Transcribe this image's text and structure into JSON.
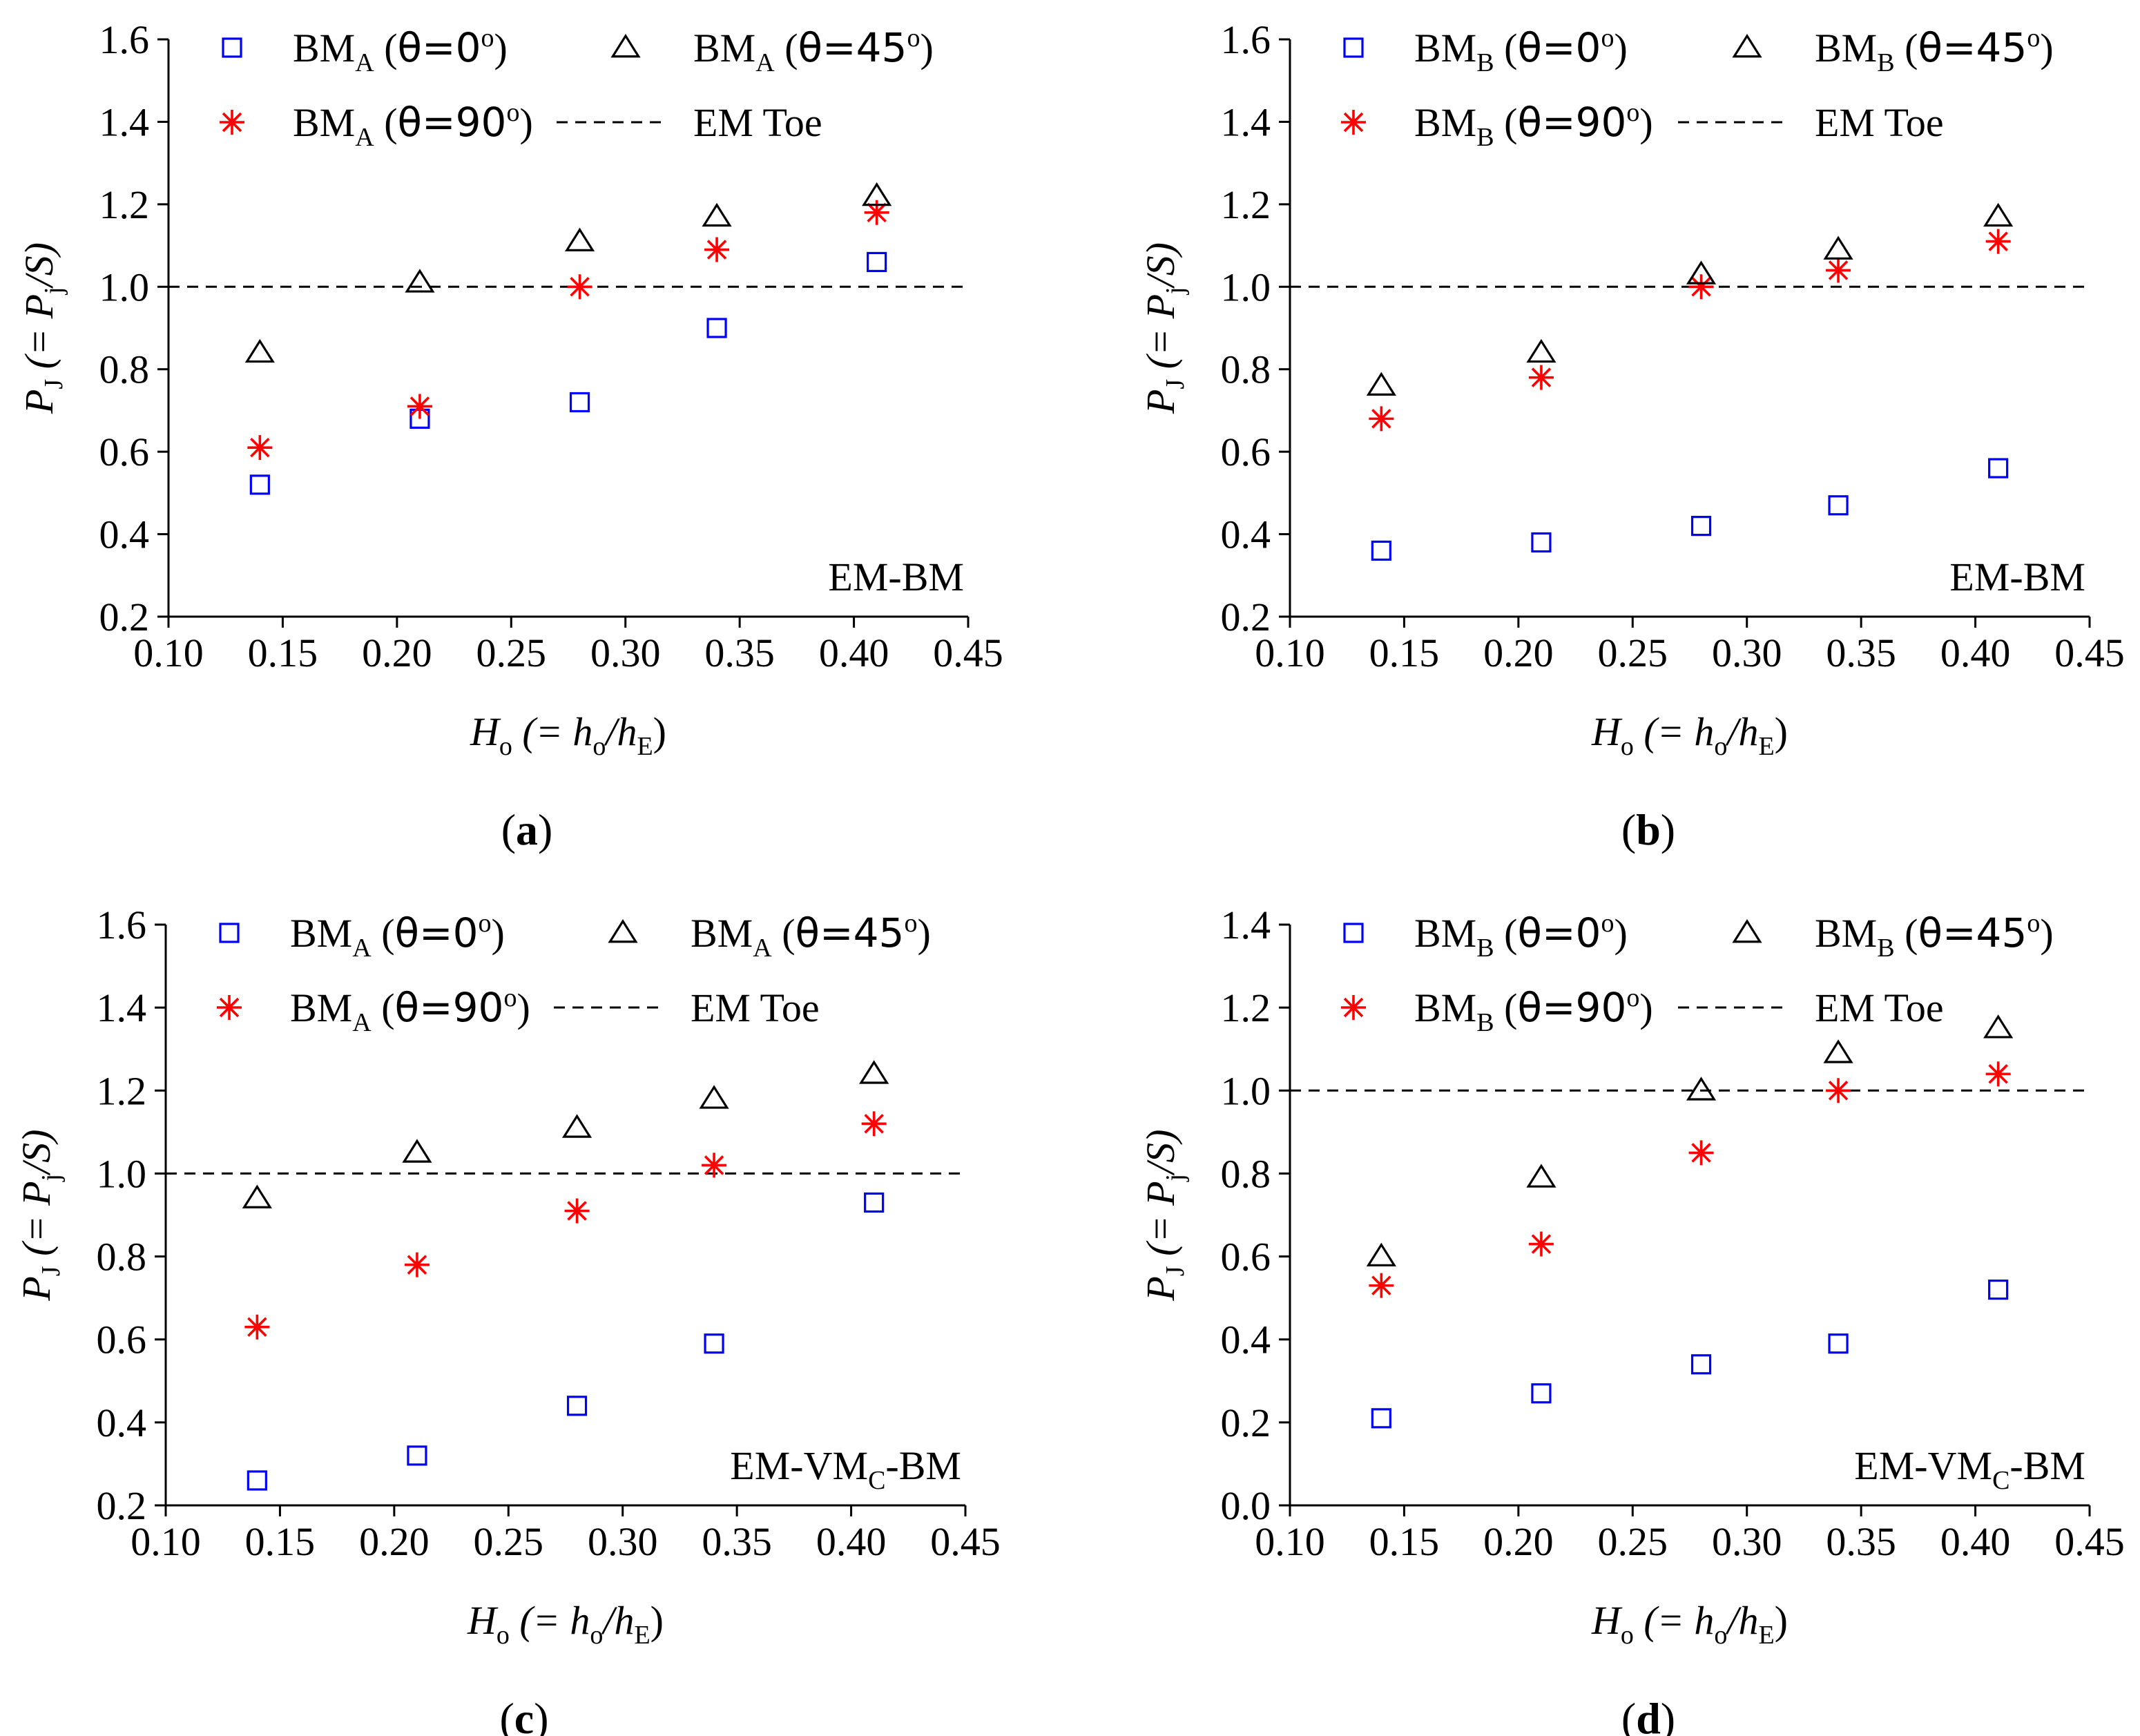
{
  "figure": {
    "sym_theta": "θ",
    "sym_deg": "o"
  },
  "chart_data": [
    {
      "type": "scatter",
      "panel_label": "(a)",
      "panel_letter": "a",
      "annotation": "EM-BM",
      "annotation_main": "EM-BM",
      "annotation_sub": "",
      "annotation_tail": "",
      "xlabel": {
        "main": "H",
        "sub": "o",
        "eq": " (= h",
        "sub2": "o",
        "slash": "/h",
        "sub3": "E",
        "close": ")"
      },
      "ylabel": {
        "main": "P",
        "sub": "J",
        "eq": " (= P",
        "sub2": "j",
        "slash": "/S)"
      },
      "xlim": [
        0.1,
        0.45
      ],
      "ylim": [
        0.2,
        1.6
      ],
      "xticks": [
        "0.10",
        "0.15",
        "0.20",
        "0.25",
        "0.30",
        "0.35",
        "0.40",
        "0.45"
      ],
      "yticks": [
        "0.2",
        "0.4",
        "0.6",
        "0.8",
        "1.0",
        "1.2",
        "1.4",
        "1.6"
      ],
      "x": [
        0.14,
        0.21,
        0.28,
        0.34,
        0.41
      ],
      "series": [
        {
          "name": "BMA (θ=0°)",
          "label_main": "BM",
          "label_sub": "A",
          "label_theta": "θ=0",
          "marker": "square",
          "color": "#0000ff",
          "values": [
            0.52,
            0.68,
            0.72,
            0.9,
            1.06
          ]
        },
        {
          "name": "BMA (θ=45°)",
          "label_main": "BM",
          "label_sub": "A",
          "label_theta": "θ=45",
          "marker": "triangle",
          "color": "#000000",
          "values": [
            0.84,
            1.01,
            1.11,
            1.17,
            1.22
          ]
        },
        {
          "name": "BMA (θ=90°)",
          "label_main": "BM",
          "label_sub": "A",
          "label_theta": "θ=90",
          "marker": "asterisk",
          "color": "#ff0000",
          "values": [
            0.61,
            0.71,
            1.0,
            1.09,
            1.18
          ]
        }
      ],
      "reference_line": {
        "name": "EM Toe",
        "value": 1.0,
        "color": "#000000"
      }
    },
    {
      "type": "scatter",
      "panel_label": "(b)",
      "panel_letter": "b",
      "annotation": "EM-BM",
      "annotation_main": "EM-BM",
      "annotation_sub": "",
      "annotation_tail": "",
      "xlabel": {
        "main": "H",
        "sub": "o",
        "eq": " (= h",
        "sub2": "o",
        "slash": "/h",
        "sub3": "E",
        "close": ")"
      },
      "ylabel": {
        "main": "P",
        "sub": "J",
        "eq": " (= P",
        "sub2": "j",
        "slash": "/S)"
      },
      "xlim": [
        0.1,
        0.45
      ],
      "ylim": [
        0.2,
        1.6
      ],
      "xticks": [
        "0.10",
        "0.15",
        "0.20",
        "0.25",
        "0.30",
        "0.35",
        "0.40",
        "0.45"
      ],
      "yticks": [
        "0.2",
        "0.4",
        "0.6",
        "0.8",
        "1.0",
        "1.2",
        "1.4",
        "1.6"
      ],
      "x": [
        0.14,
        0.21,
        0.28,
        0.34,
        0.41
      ],
      "series": [
        {
          "name": "BMB (θ=0°)",
          "label_main": "BM",
          "label_sub": "B",
          "label_theta": "θ=0",
          "marker": "square",
          "color": "#0000ff",
          "values": [
            0.36,
            0.38,
            0.42,
            0.47,
            0.56
          ]
        },
        {
          "name": "BMB (θ=45°)",
          "label_main": "BM",
          "label_sub": "B",
          "label_theta": "θ=45",
          "marker": "triangle",
          "color": "#000000",
          "values": [
            0.76,
            0.84,
            1.03,
            1.09,
            1.17
          ]
        },
        {
          "name": "BMB (θ=90°)",
          "label_main": "BM",
          "label_sub": "B",
          "label_theta": "θ=90",
          "marker": "asterisk",
          "color": "#ff0000",
          "values": [
            0.68,
            0.78,
            1.0,
            1.04,
            1.11
          ]
        }
      ],
      "reference_line": {
        "name": "EM Toe",
        "value": 1.0,
        "color": "#000000"
      }
    },
    {
      "type": "scatter",
      "panel_label": "(c)",
      "panel_letter": "c",
      "annotation": "EM-VMC-BM",
      "annotation_main": "EM-VM",
      "annotation_sub": "C",
      "annotation_tail": "-BM",
      "xlabel": {
        "main": "H",
        "sub": "o",
        "eq": " (= h",
        "sub2": "o",
        "slash": "/h",
        "sub3": "E",
        "close": ")"
      },
      "ylabel": {
        "main": "P",
        "sub": "J",
        "eq": " (= P",
        "sub2": "j",
        "slash": "/S)"
      },
      "xlim": [
        0.1,
        0.45
      ],
      "ylim": [
        0.2,
        1.6
      ],
      "xticks": [
        "0.10",
        "0.15",
        "0.20",
        "0.25",
        "0.30",
        "0.35",
        "0.40",
        "0.45"
      ],
      "yticks": [
        "0.2",
        "0.4",
        "0.6",
        "0.8",
        "1.0",
        "1.2",
        "1.4",
        "1.6"
      ],
      "x": [
        0.14,
        0.21,
        0.28,
        0.34,
        0.41
      ],
      "series": [
        {
          "name": "BMA (θ=0°)",
          "label_main": "BM",
          "label_sub": "A",
          "label_theta": "θ=0",
          "marker": "square",
          "color": "#0000ff",
          "values": [
            0.26,
            0.32,
            0.44,
            0.59,
            0.93
          ]
        },
        {
          "name": "BMA (θ=45°)",
          "label_main": "BM",
          "label_sub": "A",
          "label_theta": "θ=45",
          "marker": "triangle",
          "color": "#000000",
          "values": [
            0.94,
            1.05,
            1.11,
            1.18,
            1.24
          ]
        },
        {
          "name": "BMA (θ=90°)",
          "label_main": "BM",
          "label_sub": "A",
          "label_theta": "θ=90",
          "marker": "asterisk",
          "color": "#ff0000",
          "values": [
            0.63,
            0.78,
            0.91,
            1.02,
            1.12
          ]
        }
      ],
      "reference_line": {
        "name": "EM Toe",
        "value": 1.0,
        "color": "#000000"
      }
    },
    {
      "type": "scatter",
      "panel_label": "(d)",
      "panel_letter": "d",
      "annotation": "EM-VMC-BM",
      "annotation_main": "EM-VM",
      "annotation_sub": "C",
      "annotation_tail": "-BM",
      "xlabel": {
        "main": "H",
        "sub": "o",
        "eq": " (= h",
        "sub2": "o",
        "slash": "/h",
        "sub3": "E",
        "close": ")"
      },
      "ylabel": {
        "main": "P",
        "sub": "J",
        "eq": " (= P",
        "sub2": "j",
        "slash": "/S)"
      },
      "xlim": [
        0.1,
        0.45
      ],
      "ylim": [
        0.0,
        1.4
      ],
      "xticks": [
        "0.10",
        "0.15",
        "0.20",
        "0.25",
        "0.30",
        "0.35",
        "0.40",
        "0.45"
      ],
      "yticks": [
        "0.0",
        "0.2",
        "0.4",
        "0.6",
        "0.8",
        "1.0",
        "1.2",
        "1.4"
      ],
      "x": [
        0.14,
        0.21,
        0.28,
        0.34,
        0.41
      ],
      "series": [
        {
          "name": "BMB (θ=0°)",
          "label_main": "BM",
          "label_sub": "B",
          "label_theta": "θ=0",
          "marker": "square",
          "color": "#0000ff",
          "values": [
            0.21,
            0.27,
            0.34,
            0.39,
            0.52
          ]
        },
        {
          "name": "BMB (θ=45°)",
          "label_main": "BM",
          "label_sub": "B",
          "label_theta": "θ=45",
          "marker": "triangle",
          "color": "#000000",
          "values": [
            0.6,
            0.79,
            1.0,
            1.09,
            1.15
          ]
        },
        {
          "name": "BMB (θ=90°)",
          "label_main": "BM",
          "label_sub": "B",
          "label_theta": "θ=90",
          "marker": "asterisk",
          "color": "#ff0000",
          "values": [
            0.53,
            0.63,
            0.85,
            1.0,
            1.04
          ]
        }
      ],
      "reference_line": {
        "name": "EM Toe",
        "value": 1.0,
        "color": "#000000"
      }
    }
  ]
}
